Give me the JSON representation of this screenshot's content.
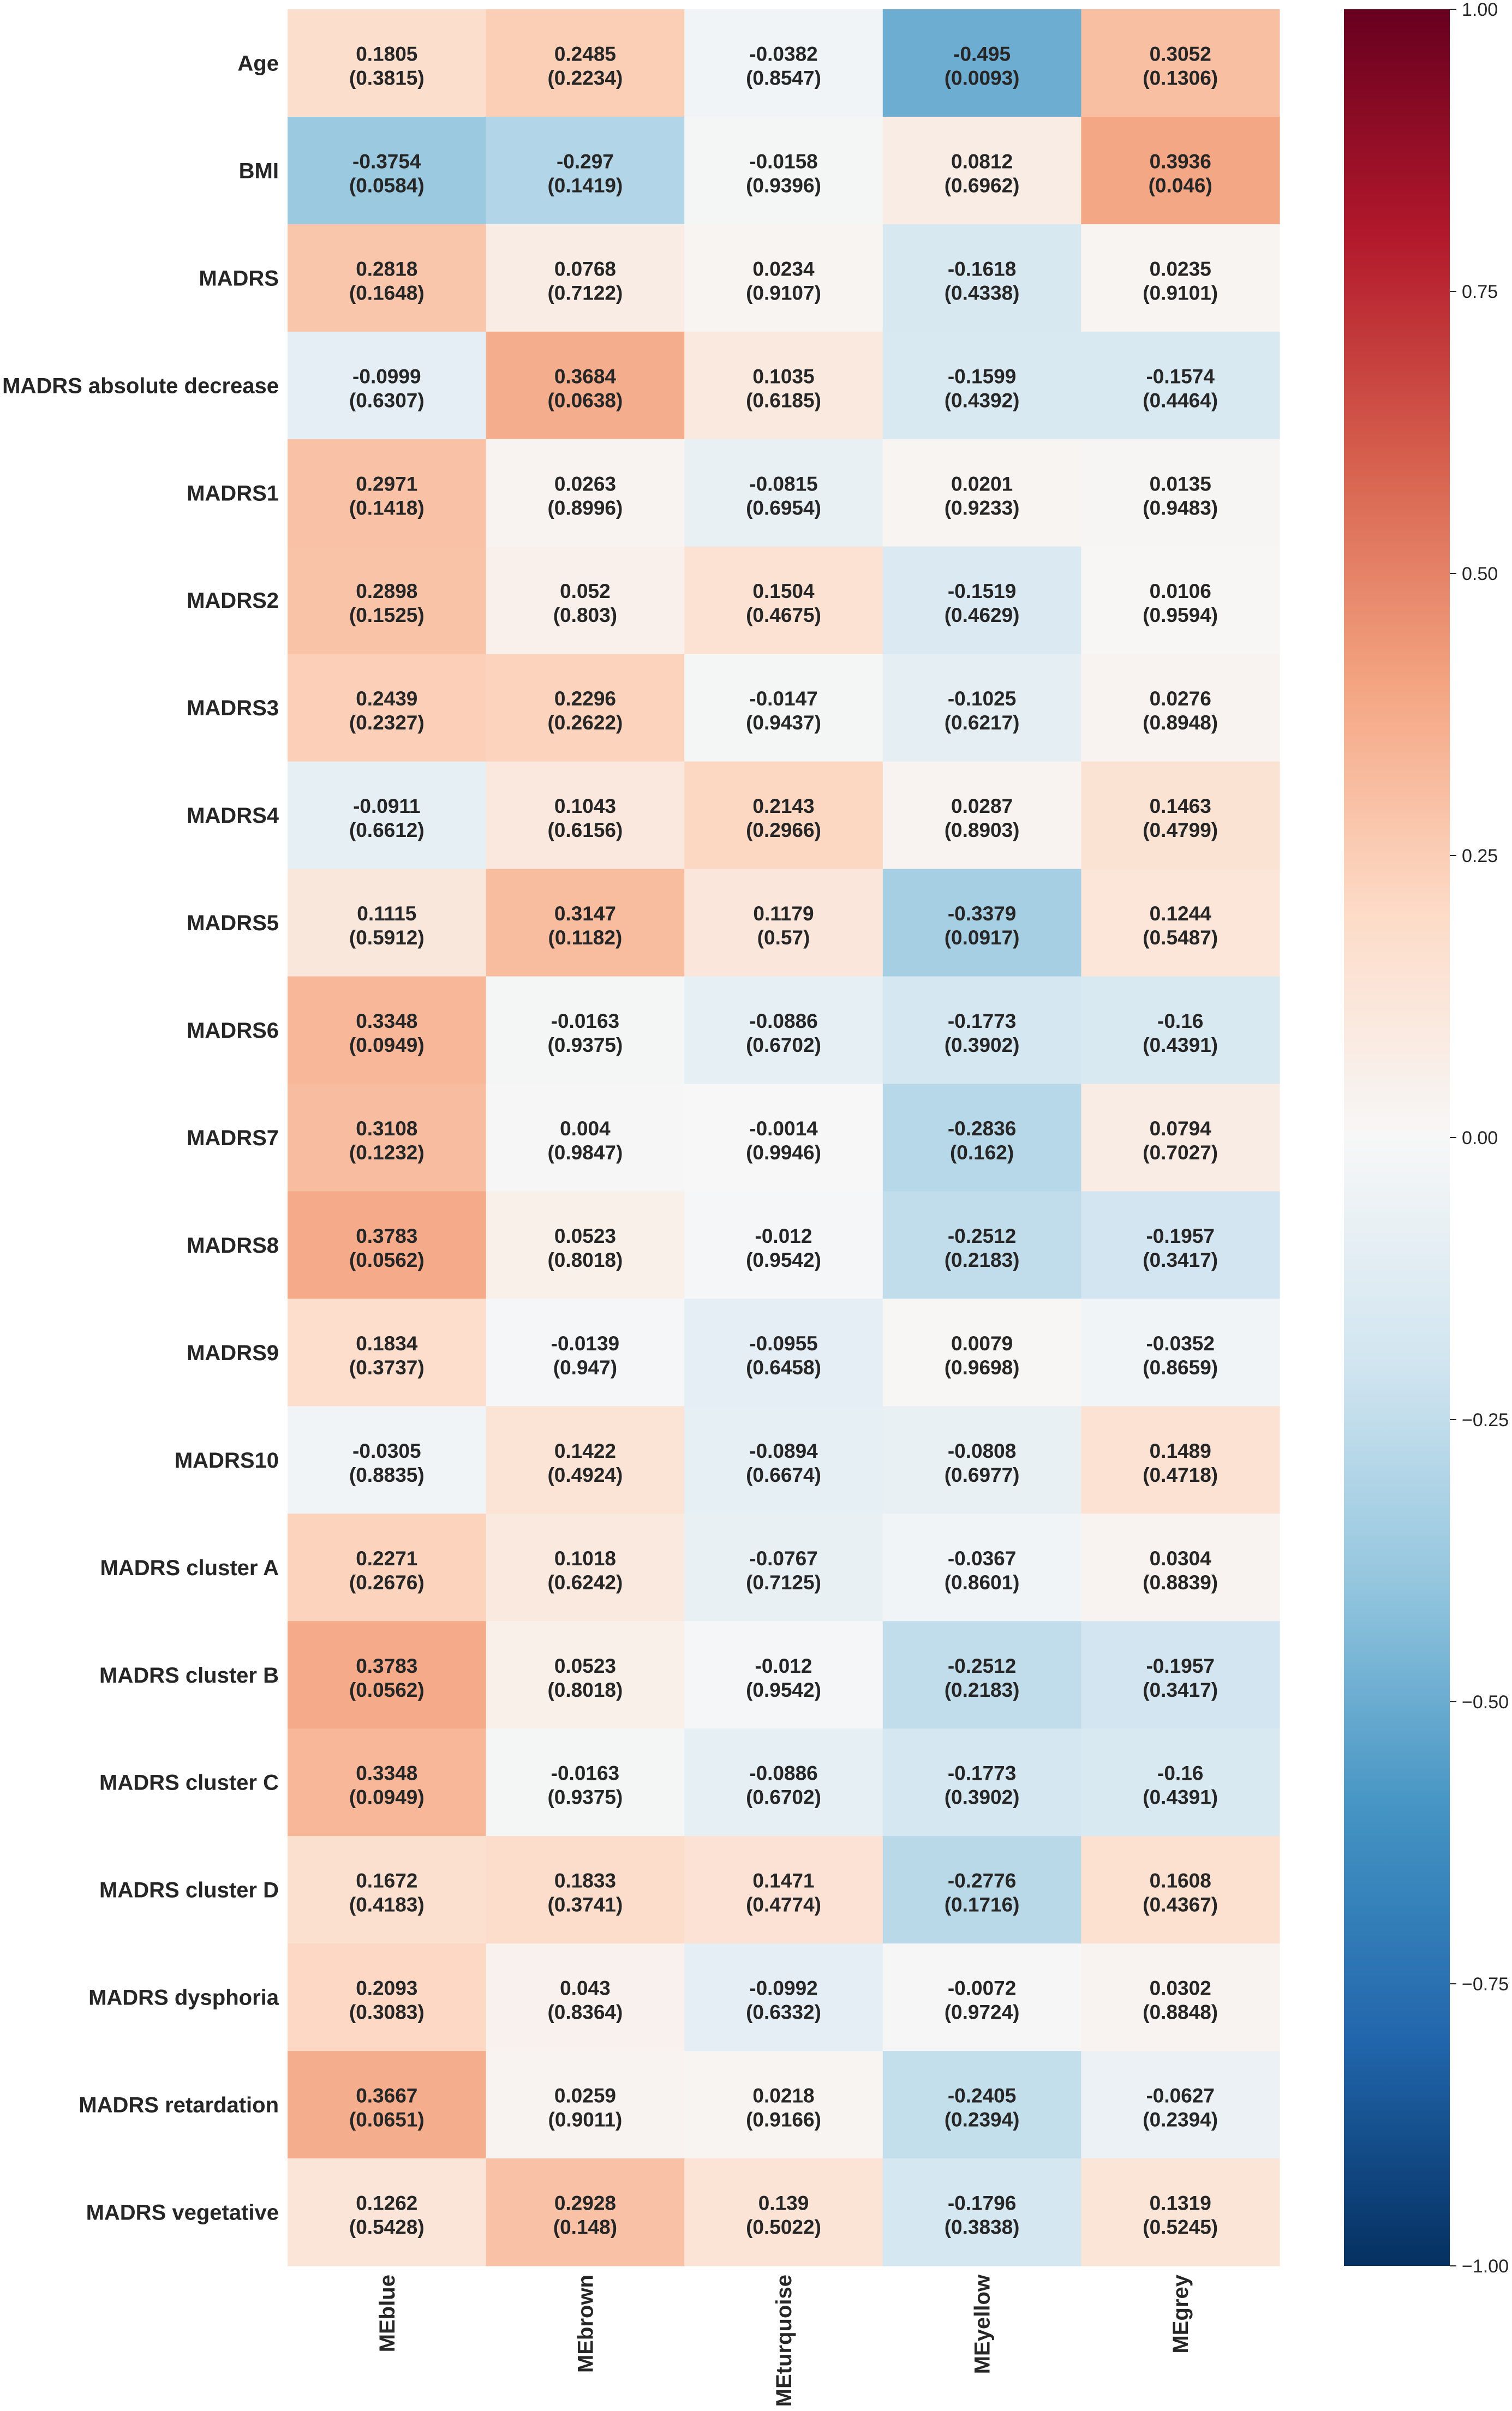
{
  "chart_data": {
    "type": "heatmap",
    "title": "",
    "xlabel": "",
    "ylabel": "",
    "columns": [
      "MEblue",
      "MEbrown",
      "MEturquoise",
      "MEyellow",
      "MEgrey"
    ],
    "rows": [
      "Age",
      "BMI",
      "MADRS",
      "MADRS absolute decrease",
      "MADRS1",
      "MADRS2",
      "MADRS3",
      "MADRS4",
      "MADRS5",
      "MADRS6",
      "MADRS7",
      "MADRS8",
      "MADRS9",
      "MADRS10",
      "MADRS cluster A",
      "MADRS cluster B",
      "MADRS cluster C",
      "MADRS cluster D",
      "MADRS dysphoria",
      "MADRS retardation",
      "MADRS vegetative"
    ],
    "values": [
      [
        0.1805,
        0.2485,
        -0.0382,
        -0.495,
        0.3052
      ],
      [
        -0.3754,
        -0.297,
        -0.0158,
        0.0812,
        0.3936
      ],
      [
        0.2818,
        0.0768,
        0.0234,
        -0.1618,
        0.0235
      ],
      [
        -0.0999,
        0.3684,
        0.1035,
        -0.1599,
        -0.1574
      ],
      [
        0.2971,
        0.0263,
        -0.0815,
        0.0201,
        0.0135
      ],
      [
        0.2898,
        0.052,
        0.1504,
        -0.1519,
        0.0106
      ],
      [
        0.2439,
        0.2296,
        -0.0147,
        -0.1025,
        0.0276
      ],
      [
        -0.0911,
        0.1043,
        0.2143,
        0.0287,
        0.1463
      ],
      [
        0.1115,
        0.3147,
        0.1179,
        -0.3379,
        0.1244
      ],
      [
        0.3348,
        -0.0163,
        -0.0886,
        -0.1773,
        -0.16
      ],
      [
        0.3108,
        0.004,
        -0.0014,
        -0.2836,
        0.0794
      ],
      [
        0.3783,
        0.0523,
        -0.012,
        -0.2512,
        -0.1957
      ],
      [
        0.1834,
        -0.0139,
        -0.0955,
        0.0079,
        -0.0352
      ],
      [
        -0.0305,
        0.1422,
        -0.0894,
        -0.0808,
        0.1489
      ],
      [
        0.2271,
        0.1018,
        -0.0767,
        -0.0367,
        0.0304
      ],
      [
        0.3783,
        0.0523,
        -0.012,
        -0.2512,
        -0.1957
      ],
      [
        0.3348,
        -0.0163,
        -0.0886,
        -0.1773,
        -0.16
      ],
      [
        0.1672,
        0.1833,
        0.1471,
        -0.2776,
        0.1608
      ],
      [
        0.2093,
        0.043,
        -0.0992,
        -0.0072,
        0.0302
      ],
      [
        0.3667,
        0.0259,
        0.0218,
        -0.2405,
        -0.0627
      ],
      [
        0.1262,
        0.2928,
        0.139,
        -0.1796,
        0.1319
      ]
    ],
    "value_labels": [
      [
        "0.1805",
        "0.2485",
        "-0.0382",
        "-0.495",
        "0.3052"
      ],
      [
        "-0.3754",
        "-0.297",
        "-0.0158",
        "0.0812",
        "0.3936"
      ],
      [
        "0.2818",
        "0.0768",
        "0.0234",
        "-0.1618",
        "0.0235"
      ],
      [
        "-0.0999",
        "0.3684",
        "0.1035",
        "-0.1599",
        "-0.1574"
      ],
      [
        "0.2971",
        "0.0263",
        "-0.0815",
        "0.0201",
        "0.0135"
      ],
      [
        "0.2898",
        "0.052",
        "0.1504",
        "-0.1519",
        "0.0106"
      ],
      [
        "0.2439",
        "0.2296",
        "-0.0147",
        "-0.1025",
        "0.0276"
      ],
      [
        "-0.0911",
        "0.1043",
        "0.2143",
        "0.0287",
        "0.1463"
      ],
      [
        "0.1115",
        "0.3147",
        "0.1179",
        "-0.3379",
        "0.1244"
      ],
      [
        "0.3348",
        "-0.0163",
        "-0.0886",
        "-0.1773",
        "-0.16"
      ],
      [
        "0.3108",
        "0.004",
        "-0.0014",
        "-0.2836",
        "0.0794"
      ],
      [
        "0.3783",
        "0.0523",
        "-0.012",
        "-0.2512",
        "-0.1957"
      ],
      [
        "0.1834",
        "-0.0139",
        "-0.0955",
        "0.0079",
        "-0.0352"
      ],
      [
        "-0.0305",
        "0.1422",
        "-0.0894",
        "-0.0808",
        "0.1489"
      ],
      [
        "0.2271",
        "0.1018",
        "-0.0767",
        "-0.0367",
        "0.0304"
      ],
      [
        "0.3783",
        "0.0523",
        "-0.012",
        "-0.2512",
        "-0.1957"
      ],
      [
        "0.3348",
        "-0.0163",
        "-0.0886",
        "-0.1773",
        "-0.16"
      ],
      [
        "0.1672",
        "0.1833",
        "0.1471",
        "-0.2776",
        "0.1608"
      ],
      [
        "0.2093",
        "0.043",
        "-0.0992",
        "-0.0072",
        "0.0302"
      ],
      [
        "0.3667",
        "0.0259",
        "0.0218",
        "-0.2405",
        "-0.0627"
      ],
      [
        "0.1262",
        "0.2928",
        "0.139",
        "-0.1796",
        "0.1319"
      ]
    ],
    "p_value_labels": [
      [
        "(0.3815)",
        "(0.2234)",
        "(0.8547)",
        "(0.0093)",
        "(0.1306)"
      ],
      [
        "(0.0584)",
        "(0.1419)",
        "(0.9396)",
        "(0.6962)",
        "(0.046)"
      ],
      [
        "(0.1648)",
        "(0.7122)",
        "(0.9107)",
        "(0.4338)",
        "(0.9101)"
      ],
      [
        "(0.6307)",
        "(0.0638)",
        "(0.6185)",
        "(0.4392)",
        "(0.4464)"
      ],
      [
        "(0.1418)",
        "(0.8996)",
        "(0.6954)",
        "(0.9233)",
        "(0.9483)"
      ],
      [
        "(0.1525)",
        "(0.803)",
        "(0.4675)",
        "(0.4629)",
        "(0.9594)"
      ],
      [
        "(0.2327)",
        "(0.2622)",
        "(0.9437)",
        "(0.6217)",
        "(0.8948)"
      ],
      [
        "(0.6612)",
        "(0.6156)",
        "(0.2966)",
        "(0.8903)",
        "(0.4799)"
      ],
      [
        "(0.5912)",
        "(0.1182)",
        "(0.57)",
        "(0.0917)",
        "(0.5487)"
      ],
      [
        "(0.0949)",
        "(0.9375)",
        "(0.6702)",
        "(0.3902)",
        "(0.4391)"
      ],
      [
        "(0.1232)",
        "(0.9847)",
        "(0.9946)",
        "(0.162)",
        "(0.7027)"
      ],
      [
        "(0.0562)",
        "(0.8018)",
        "(0.9542)",
        "(0.2183)",
        "(0.3417)"
      ],
      [
        "(0.3737)",
        "(0.947)",
        "(0.6458)",
        "(0.9698)",
        "(0.8659)"
      ],
      [
        "(0.8835)",
        "(0.4924)",
        "(0.6674)",
        "(0.6977)",
        "(0.4718)"
      ],
      [
        "(0.2676)",
        "(0.6242)",
        "(0.7125)",
        "(0.8601)",
        "(0.8839)"
      ],
      [
        "(0.0562)",
        "(0.8018)",
        "(0.9542)",
        "(0.2183)",
        "(0.3417)"
      ],
      [
        "(0.0949)",
        "(0.9375)",
        "(0.6702)",
        "(0.3902)",
        "(0.4391)"
      ],
      [
        "(0.4183)",
        "(0.3741)",
        "(0.4774)",
        "(0.1716)",
        "(0.4367)"
      ],
      [
        "(0.3083)",
        "(0.8364)",
        "(0.6332)",
        "(0.9724)",
        "(0.8848)"
      ],
      [
        "(0.0651)",
        "(0.9011)",
        "(0.9166)",
        "(0.2394)",
        "(0.2394)"
      ],
      [
        "(0.5428)",
        "(0.148)",
        "(0.5022)",
        "(0.3838)",
        "(0.5245)"
      ]
    ],
    "colorbar": {
      "range": [
        -1.0,
        1.0
      ],
      "ticks": [
        1.0,
        0.75,
        0.5,
        0.25,
        0.0,
        -0.25,
        -0.5,
        -0.75,
        -1.0
      ],
      "tick_labels": [
        "1.00",
        "0.75",
        "0.50",
        "0.25",
        "0.00",
        "−0.25",
        "−0.50",
        "−0.75",
        "−1.00"
      ],
      "colormap": "RdBu_r"
    },
    "colormap_stops": [
      "#053061",
      "#2166ac",
      "#4393c3",
      "#92c5de",
      "#d1e5f0",
      "#f7f7f7",
      "#fddbc7",
      "#f4a582",
      "#d6604d",
      "#b2182b",
      "#67001f"
    ],
    "text_colors": {
      "light": "#ffffff",
      "dark": "#262626"
    },
    "label_color": "#262626"
  }
}
